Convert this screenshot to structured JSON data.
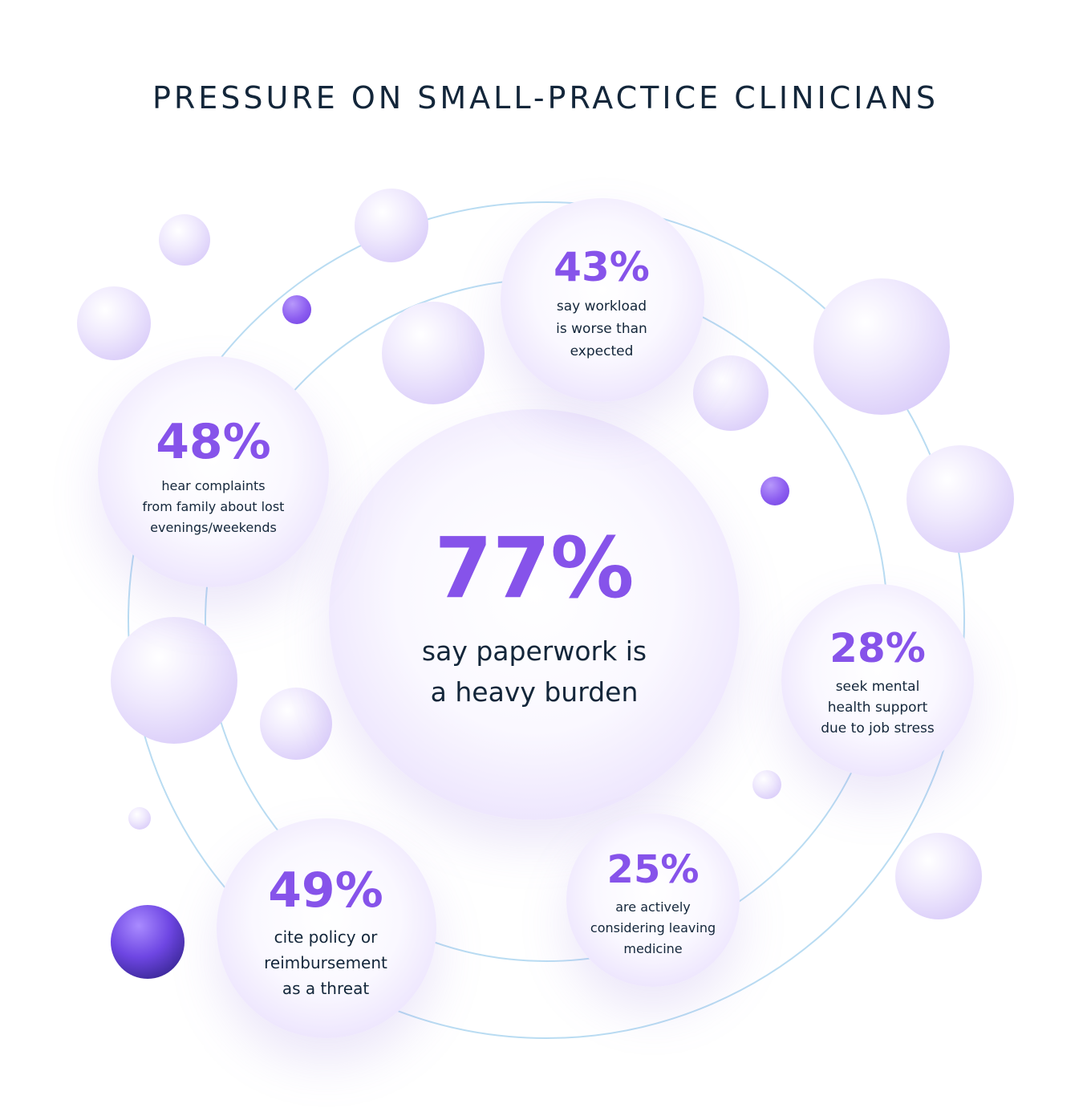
{
  "title": "PRESSURE ON SMALL-PRACTICE CLINICIANS",
  "colors": {
    "accent": "#8653ea",
    "text": "#13263a",
    "orbit": "#b9dcf2"
  },
  "stats": {
    "center": {
      "value": "77%",
      "label": "say paperwork is\na heavy burden"
    },
    "workload": {
      "value": "43%",
      "label": "say workload\nis worse than\nexpected"
    },
    "family": {
      "value": "48%",
      "label": "hear complaints\nfrom family about lost\nevenings/weekends"
    },
    "mental": {
      "value": "28%",
      "label": "seek mental\nhealth support\ndue to job stress"
    },
    "policy": {
      "value": "49%",
      "label": "cite policy or\nreimbursement\nas a threat"
    },
    "leaving": {
      "value": "25%",
      "label": "are actively\nconsidering leaving\nmedicine"
    }
  }
}
